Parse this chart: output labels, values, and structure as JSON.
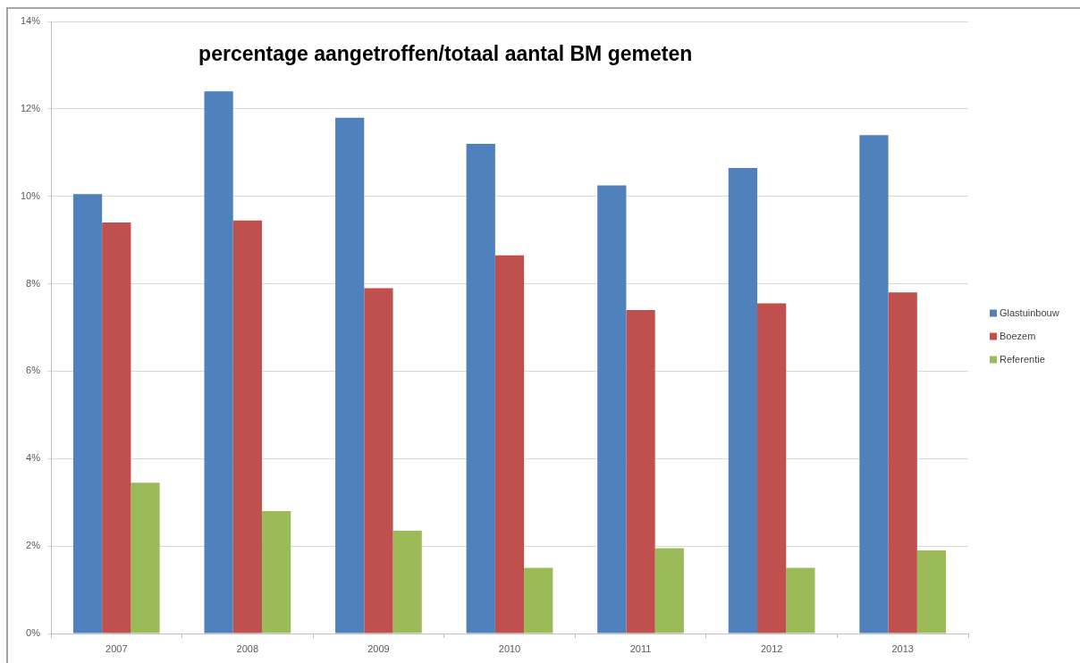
{
  "chart_data": {
    "type": "bar",
    "title": "percentage aangetroffen/totaal aantal BM gemeten",
    "categories": [
      "2007",
      "2008",
      "2009",
      "2010",
      "2011",
      "2012",
      "2013"
    ],
    "series": [
      {
        "name": "Glastuinbouw",
        "color": "#4f81bd",
        "values": [
          10.05,
          12.4,
          11.8,
          11.2,
          10.25,
          10.65,
          11.4
        ]
      },
      {
        "name": "Boezem",
        "color": "#c0504d",
        "values": [
          9.4,
          9.45,
          7.9,
          8.65,
          7.4,
          7.55,
          7.8
        ]
      },
      {
        "name": "Referentie",
        "color": "#9bbb59",
        "values": [
          3.45,
          2.8,
          2.35,
          1.5,
          1.95,
          1.5,
          1.9
        ]
      }
    ],
    "ylim": [
      0,
      14
    ],
    "yticks": [
      {
        "value": 0,
        "label": "0%"
      },
      {
        "value": 2,
        "label": "2%"
      },
      {
        "value": 4,
        "label": "4%"
      },
      {
        "value": 6,
        "label": "6%"
      },
      {
        "value": 8,
        "label": "8%"
      },
      {
        "value": 10,
        "label": "10%"
      },
      {
        "value": 12,
        "label": "12%"
      },
      {
        "value": 14,
        "label": "14%"
      }
    ],
    "grid": "y",
    "legend": "right"
  }
}
